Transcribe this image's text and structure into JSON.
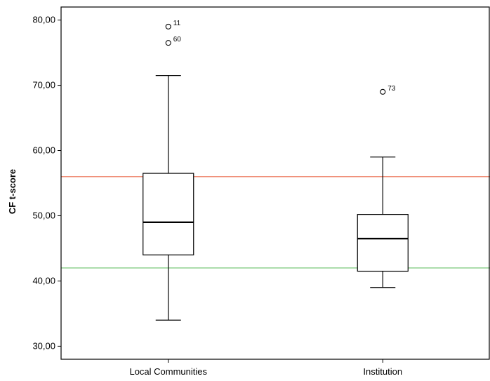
{
  "chart_data": {
    "type": "boxplot",
    "ylabel": "CF t-score",
    "ylim": [
      28,
      82
    ],
    "yticks": [
      30,
      40,
      50,
      60,
      70,
      80
    ],
    "ytick_labels": [
      "30,00",
      "40,00",
      "50,00",
      "60,00",
      "70,00",
      "80,00"
    ],
    "categories": [
      "Local Communities",
      "Institution"
    ],
    "boxes": [
      {
        "category": "Local Communities",
        "whisker_low": 34,
        "q1": 44,
        "median": 49,
        "q3": 56.5,
        "whisker_high": 71.5,
        "outliers": [
          {
            "value": 79,
            "label": "11"
          },
          {
            "value": 76.5,
            "label": "60"
          }
        ]
      },
      {
        "category": "Institution",
        "whisker_low": 39,
        "q1": 41.5,
        "median": 46.5,
        "q3": 50.2,
        "whisker_high": 59,
        "outliers": [
          {
            "value": 69,
            "label": "73"
          }
        ]
      }
    ],
    "reference_lines": [
      {
        "value": 56,
        "color": "#f0907a"
      },
      {
        "value": 42,
        "color": "#8fd18f"
      }
    ],
    "grid": false
  }
}
